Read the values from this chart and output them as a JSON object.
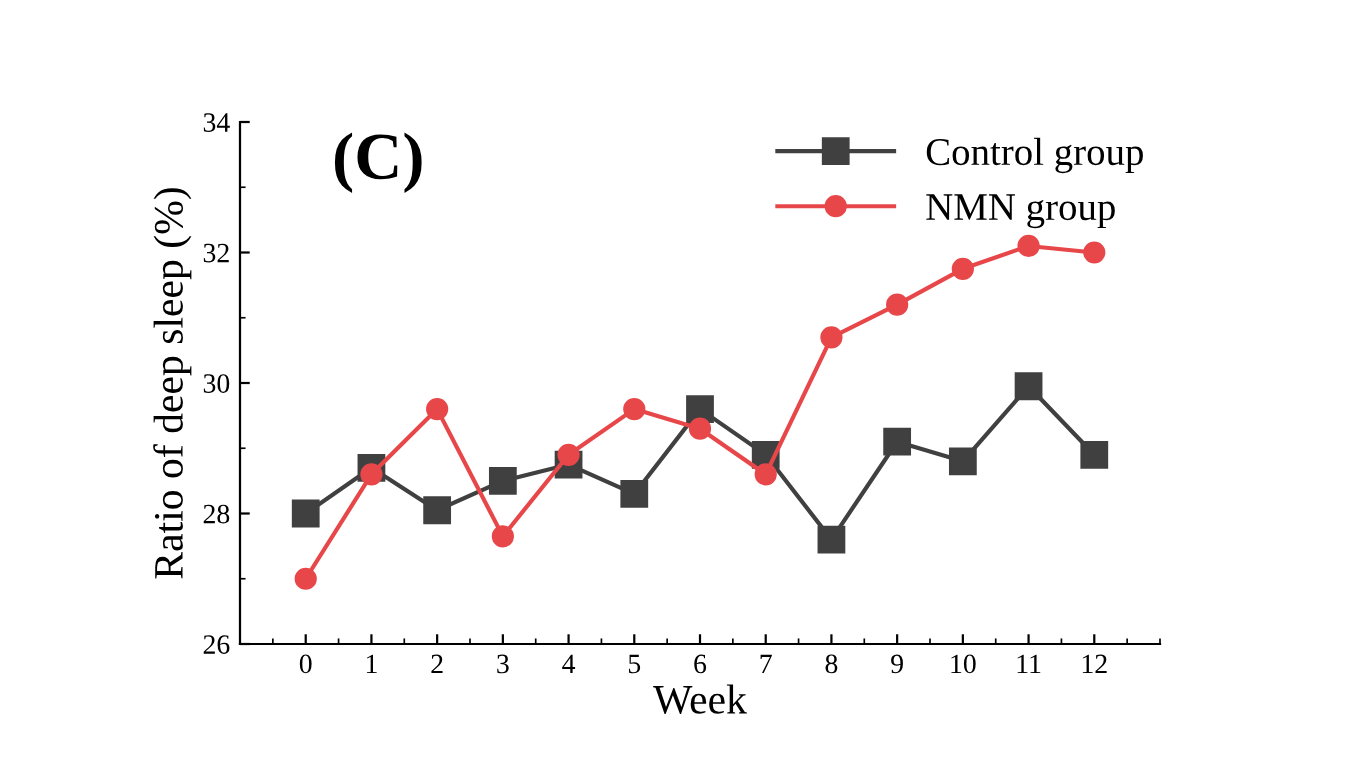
{
  "chart_data": {
    "type": "line",
    "title": "(C)",
    "xlabel": "Week",
    "ylabel": "Ratio of deep sleep (%)",
    "x": [
      0,
      1,
      2,
      3,
      4,
      5,
      6,
      7,
      8,
      9,
      10,
      11,
      12
    ],
    "series": [
      {
        "name": "Control group",
        "color": "#404040",
        "marker": "square",
        "values": [
          28.0,
          28.7,
          28.05,
          28.5,
          28.75,
          28.3,
          29.6,
          28.9,
          27.6,
          29.1,
          28.8,
          29.95,
          28.9
        ]
      },
      {
        "name": "NMN group",
        "color": "#e8474a",
        "marker": "circle",
        "values": [
          27.0,
          28.6,
          29.6,
          27.65,
          28.9,
          29.6,
          29.3,
          28.6,
          30.7,
          31.2,
          31.75,
          32.1,
          32.0
        ]
      }
    ],
    "xlim": [
      -1,
      13
    ],
    "ylim": [
      26,
      34
    ],
    "xticks": [
      0,
      1,
      2,
      3,
      4,
      5,
      6,
      7,
      8,
      9,
      10,
      11,
      12
    ],
    "yticks": [
      26,
      28,
      30,
      32,
      34
    ],
    "grid": false,
    "legend": "top right",
    "line_style": "solid"
  }
}
